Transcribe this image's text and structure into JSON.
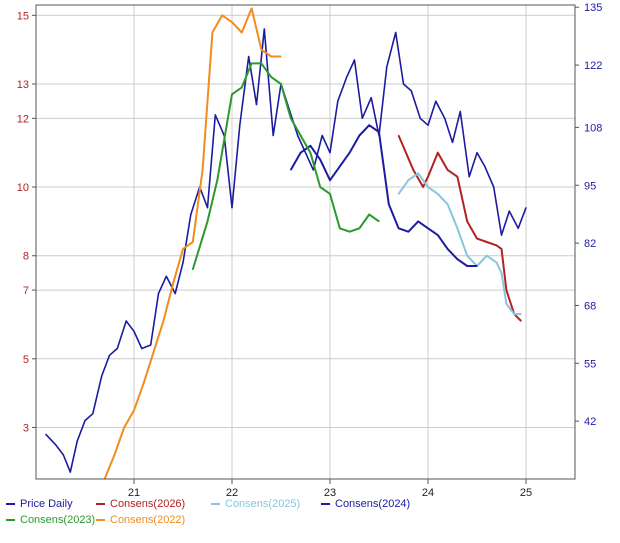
{
  "chart_data": {
    "type": "line",
    "title": "",
    "xlabel": "",
    "ylabel_left": "",
    "ylabel_right": "",
    "x_ticks": [
      "21",
      "22",
      "23",
      "24",
      "25"
    ],
    "x_range": [
      2020.0,
      2025.5
    ],
    "y_left_ticks": [
      "3",
      "5",
      "7",
      "8",
      "10",
      "12",
      "13",
      "15"
    ],
    "y_left_range": [
      1.5,
      15.3
    ],
    "y_right_ticks": [
      "42",
      "55",
      "68",
      "82",
      "95",
      "108",
      "122",
      "135"
    ],
    "y_right_range": [
      29,
      135.5
    ],
    "grid": true,
    "legend_position": "bottom",
    "series": [
      {
        "name": "Price Daily",
        "axis": "left",
        "color": "#1c1ca0",
        "x": [
          2020.1,
          2020.2,
          2020.28,
          2020.35,
          2020.42,
          2020.5,
          2020.58,
          2020.67,
          2020.75,
          2020.83,
          2020.92,
          2021.0,
          2021.08,
          2021.17,
          2021.25,
          2021.33,
          2021.42,
          2021.5,
          2021.58,
          2021.67,
          2021.75,
          2021.83,
          2021.92,
          2022.0,
          2022.08,
          2022.17,
          2022.25,
          2022.33,
          2022.42,
          2022.5,
          2022.58,
          2022.67,
          2022.75,
          2022.83,
          2022.92,
          2023.0,
          2023.08,
          2023.17,
          2023.25,
          2023.33,
          2023.42,
          2023.5,
          2023.58,
          2023.67,
          2023.75,
          2023.83,
          2023.92,
          2024.0,
          2024.08,
          2024.17,
          2024.25,
          2024.33,
          2024.42,
          2024.5,
          2024.58,
          2024.67,
          2024.75,
          2024.83,
          2024.92,
          2025.0
        ],
        "y": [
          2.8,
          2.5,
          2.2,
          1.7,
          2.6,
          3.2,
          3.4,
          4.5,
          5.1,
          5.3,
          6.1,
          5.8,
          5.3,
          5.4,
          6.9,
          7.4,
          6.9,
          7.8,
          9.2,
          10.0,
          9.4,
          12.1,
          11.5,
          9.4,
          11.8,
          13.8,
          12.4,
          14.6,
          11.5,
          13.0,
          12.3,
          11.5,
          11.0,
          10.5,
          11.5,
          11.0,
          12.5,
          13.2,
          13.7,
          12.0,
          12.6,
          11.5,
          13.5,
          14.5,
          13.0,
          12.8,
          12.0,
          11.8,
          12.5,
          12.0,
          11.3,
          12.2,
          10.3,
          11.0,
          10.6,
          10.0,
          8.6,
          9.3,
          8.8,
          9.4
        ]
      },
      {
        "name": "Consens(2026)",
        "axis": "left",
        "color": "#b22222",
        "x": [
          2023.7,
          2023.85,
          2023.95,
          2024.0,
          2024.1,
          2024.2,
          2024.3,
          2024.4,
          2024.5,
          2024.6,
          2024.7,
          2024.75,
          2024.8,
          2024.88,
          2024.95
        ],
        "y": [
          11.5,
          10.5,
          10.0,
          10.3,
          11.0,
          10.5,
          10.3,
          9.0,
          8.5,
          8.4,
          8.3,
          8.2,
          7.0,
          6.3,
          6.1
        ]
      },
      {
        "name": "Consens(2025)",
        "axis": "left",
        "color": "#87c6dc",
        "x": [
          2023.7,
          2023.8,
          2023.9,
          2024.0,
          2024.1,
          2024.2,
          2024.3,
          2024.4,
          2024.5,
          2024.6,
          2024.7,
          2024.75,
          2024.8,
          2024.88,
          2024.95
        ],
        "y": [
          9.8,
          10.2,
          10.4,
          10.0,
          9.8,
          9.5,
          8.8,
          8.0,
          7.7,
          8.0,
          7.8,
          7.5,
          6.6,
          6.3,
          6.3
        ]
      },
      {
        "name": "Consens(2024)",
        "axis": "left",
        "color": "#1c1ca0",
        "x": [
          2022.6,
          2022.7,
          2022.8,
          2022.9,
          2023.0,
          2023.1,
          2023.2,
          2023.3,
          2023.4,
          2023.5,
          2023.6,
          2023.7,
          2023.8,
          2023.9,
          2024.0,
          2024.1,
          2024.2,
          2024.3,
          2024.4,
          2024.5
        ],
        "y": [
          10.5,
          11.0,
          11.2,
          10.8,
          10.2,
          10.6,
          11.0,
          11.5,
          11.8,
          11.6,
          9.5,
          8.8,
          8.7,
          9.0,
          8.8,
          8.6,
          8.2,
          7.9,
          7.7,
          7.7
        ]
      },
      {
        "name": "Consens(2023)",
        "axis": "left",
        "color": "#2a9a2a",
        "x": [
          2021.6,
          2021.75,
          2021.85,
          2022.0,
          2022.1,
          2022.2,
          2022.3,
          2022.4,
          2022.5,
          2022.6,
          2022.7,
          2022.8,
          2022.9,
          2023.0,
          2023.1,
          2023.2,
          2023.3,
          2023.4,
          2023.5
        ],
        "y": [
          7.6,
          9.0,
          10.2,
          12.7,
          12.9,
          13.6,
          13.6,
          13.2,
          13.0,
          12.0,
          11.5,
          11.0,
          10.0,
          9.8,
          8.8,
          8.7,
          8.8,
          9.2,
          9.0
        ]
      },
      {
        "name": "Consens(2022)",
        "axis": "left",
        "color": "#f28c1e",
        "x": [
          2020.7,
          2020.8,
          2020.9,
          2021.0,
          2021.1,
          2021.2,
          2021.3,
          2021.4,
          2021.5,
          2021.6,
          2021.7,
          2021.8,
          2021.9,
          2022.0,
          2022.1,
          2022.2,
          2022.3,
          2022.4,
          2022.5
        ],
        "y": [
          1.5,
          2.2,
          3.0,
          3.5,
          4.3,
          5.2,
          6.1,
          7.2,
          8.2,
          8.4,
          10.5,
          14.5,
          15.0,
          14.8,
          14.5,
          15.2,
          14.0,
          13.8,
          13.8
        ]
      }
    ]
  }
}
